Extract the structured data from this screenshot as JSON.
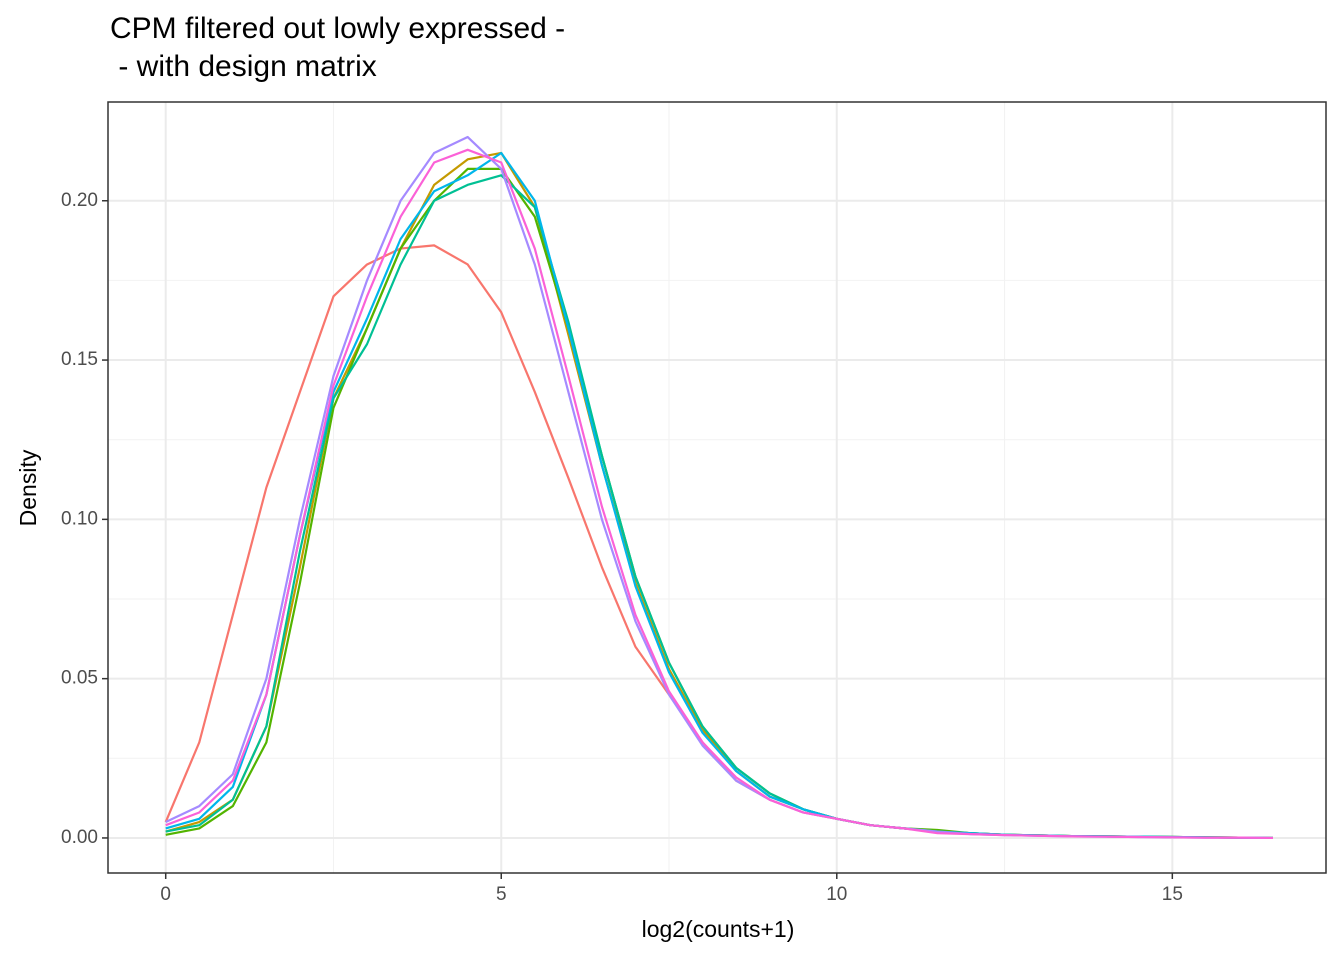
{
  "chart_data": {
    "type": "line",
    "title": [
      "CPM filtered out lowly expressed -",
      " - with design matrix"
    ],
    "x_label": "log2(counts+1)",
    "y_label": "Density",
    "xlim": [
      -0.86,
      17.29
    ],
    "ylim": [
      -0.011,
      0.231
    ],
    "xticks": [
      0,
      5,
      10,
      15
    ],
    "yticks": [
      {
        "value": 0,
        "label": "0.00"
      },
      {
        "value": 0.05,
        "label": "0.05"
      },
      {
        "value": 0.1,
        "label": "0.10"
      },
      {
        "value": 0.15,
        "label": "0.15"
      },
      {
        "value": 0.2,
        "label": "0.20"
      }
    ],
    "grid": true,
    "x": [
      0,
      0.5,
      1,
      1.5,
      2,
      2.5,
      3,
      3.5,
      4,
      4.5,
      5,
      5.5,
      6,
      6.5,
      7,
      7.5,
      8,
      8.5,
      9,
      9.5,
      10,
      10.5,
      11,
      11.5,
      12,
      12.5,
      13,
      13.5,
      14,
      14.5,
      15,
      15.5,
      16,
      16.5
    ],
    "series": [
      {
        "color": "#F8766D",
        "values": [
          0.005,
          0.03,
          0.07,
          0.11,
          0.14,
          0.17,
          0.18,
          0.185,
          0.186,
          0.18,
          0.165,
          0.14,
          0.113,
          0.085,
          0.06,
          0.045,
          0.03,
          0.018,
          0.012,
          0.008,
          0.006,
          0.004,
          0.003,
          0.002,
          0.0015,
          0.001,
          0.0008,
          0.0006,
          0.0005,
          0.0004,
          0.0003,
          0.0002,
          0.0001,
          0
        ]
      },
      {
        "color": "#C49A00",
        "values": [
          0.002,
          0.005,
          0.012,
          0.035,
          0.085,
          0.138,
          0.16,
          0.185,
          0.205,
          0.213,
          0.215,
          0.198,
          0.158,
          0.117,
          0.08,
          0.053,
          0.034,
          0.021,
          0.013,
          0.009,
          0.006,
          0.004,
          0.003,
          0.002,
          0.0015,
          0.001,
          0.0008,
          0.0006,
          0.0005,
          0.0004,
          0.0003,
          0.0002,
          0.0001,
          0
        ]
      },
      {
        "color": "#53B400",
        "values": [
          0.001,
          0.003,
          0.01,
          0.03,
          0.08,
          0.135,
          0.16,
          0.185,
          0.2,
          0.21,
          0.21,
          0.195,
          0.16,
          0.12,
          0.082,
          0.055,
          0.035,
          0.022,
          0.014,
          0.009,
          0.006,
          0.004,
          0.003,
          0.0025,
          0.0015,
          0.001,
          0.0008,
          0.0006,
          0.0005,
          0.0004,
          0.0003,
          0.0002,
          0.0001,
          0
        ]
      },
      {
        "color": "#00C094",
        "values": [
          0.002,
          0.004,
          0.012,
          0.035,
          0.09,
          0.138,
          0.155,
          0.18,
          0.2,
          0.205,
          0.208,
          0.198,
          0.162,
          0.12,
          0.082,
          0.055,
          0.035,
          0.022,
          0.014,
          0.009,
          0.006,
          0.004,
          0.003,
          0.002,
          0.0015,
          0.001,
          0.0008,
          0.0006,
          0.0005,
          0.0004,
          0.0003,
          0.0002,
          0.0001,
          0
        ]
      },
      {
        "color": "#00B6EB",
        "values": [
          0.003,
          0.006,
          0.016,
          0.045,
          0.095,
          0.14,
          0.163,
          0.188,
          0.203,
          0.208,
          0.215,
          0.2,
          0.16,
          0.117,
          0.079,
          0.052,
          0.033,
          0.021,
          0.013,
          0.009,
          0.006,
          0.004,
          0.003,
          0.002,
          0.0015,
          0.001,
          0.0008,
          0.0006,
          0.0005,
          0.0004,
          0.0003,
          0.0002,
          0.0001,
          0
        ]
      },
      {
        "color": "#A58AFF",
        "values": [
          0.005,
          0.01,
          0.02,
          0.05,
          0.1,
          0.145,
          0.175,
          0.2,
          0.215,
          0.22,
          0.21,
          0.18,
          0.14,
          0.1,
          0.068,
          0.045,
          0.029,
          0.018,
          0.012,
          0.008,
          0.006,
          0.004,
          0.003,
          0.002,
          0.0012,
          0.0009,
          0.0007,
          0.0005,
          0.0004,
          0.0003,
          0.0002,
          0.0001,
          0.0001,
          0
        ]
      },
      {
        "color": "#FB61D7",
        "values": [
          0.004,
          0.008,
          0.018,
          0.045,
          0.095,
          0.142,
          0.17,
          0.195,
          0.212,
          0.216,
          0.212,
          0.185,
          0.145,
          0.104,
          0.07,
          0.046,
          0.03,
          0.019,
          0.012,
          0.008,
          0.006,
          0.004,
          0.003,
          0.0015,
          0.0012,
          0.0009,
          0.0007,
          0.0005,
          0.0004,
          0.0003,
          0.0002,
          0.0001,
          0.0001,
          0
        ]
      }
    ]
  }
}
